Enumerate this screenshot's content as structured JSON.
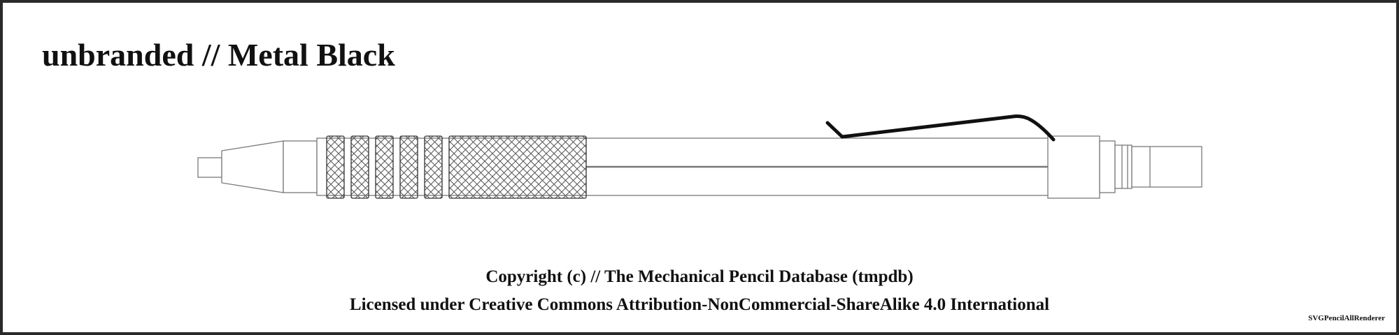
{
  "title": "unbranded // Metal Black",
  "copyright": "Copyright (c) // The Mechanical Pencil Database (tmpdb)",
  "license": "Licensed under Creative Commons Attribution-NonCommercial-ShareAlike 4.0 International",
  "renderer": "SVGPencilAllRenderer",
  "colors": {
    "outline": "#7a7a7a",
    "clip": "#111111",
    "grip_outline": "#333333",
    "knurl": "#555555",
    "frame": "#2a2a2a"
  }
}
